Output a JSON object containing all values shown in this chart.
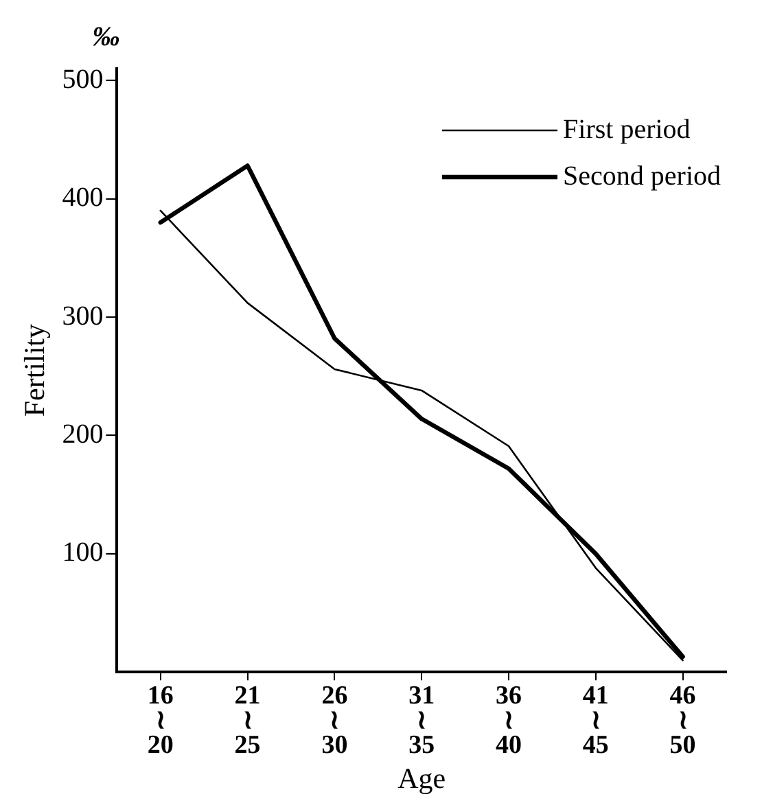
{
  "chart_data": {
    "type": "line",
    "xlabel": "Age",
    "ylabel": "Fertility",
    "annotations": [
      "‰"
    ],
    "categories": [
      "16\n≀\n20",
      "21\n≀\n25",
      "26\n≀\n30",
      "31\n≀\n35",
      "36\n≀\n40",
      "41\n≀\n45",
      "46\n≀\n50"
    ],
    "series": [
      {
        "name": "First period",
        "color": "#000000",
        "values": [
          390,
          312,
          256,
          238,
          191,
          88,
          10
        ]
      },
      {
        "name": "Second period",
        "color": "#000000",
        "values": [
          380,
          428,
          282,
          214,
          172,
          100,
          13
        ]
      }
    ],
    "ylim": [
      0,
      510
    ],
    "yticks": [
      100,
      200,
      300,
      400,
      500
    ],
    "grid": false,
    "legend": "top right",
    "marker": "none",
    "line_style": "solid"
  }
}
